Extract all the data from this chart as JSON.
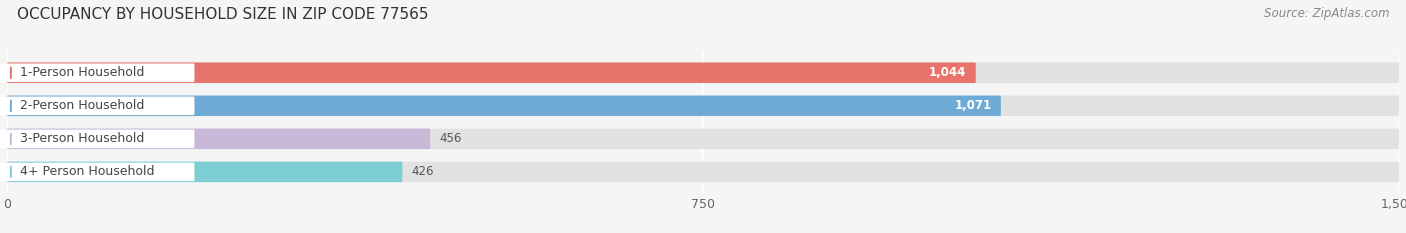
{
  "title": "OCCUPANCY BY HOUSEHOLD SIZE IN ZIP CODE 77565",
  "source": "Source: ZipAtlas.com",
  "categories": [
    "1-Person Household",
    "2-Person Household",
    "3-Person Household",
    "4+ Person Household"
  ],
  "values": [
    1044,
    1071,
    456,
    426
  ],
  "bar_colors": [
    "#e8736c",
    "#6faad6",
    "#c9b8d8",
    "#7dcdd4"
  ],
  "xlim": [
    0,
    1500
  ],
  "xticks": [
    0,
    750,
    1500
  ],
  "background_color": "#f5f5f5",
  "bar_bg_color": "#e2e2e2",
  "title_fontsize": 11,
  "source_fontsize": 8.5,
  "label_fontsize": 9,
  "value_fontsize": 8.5
}
